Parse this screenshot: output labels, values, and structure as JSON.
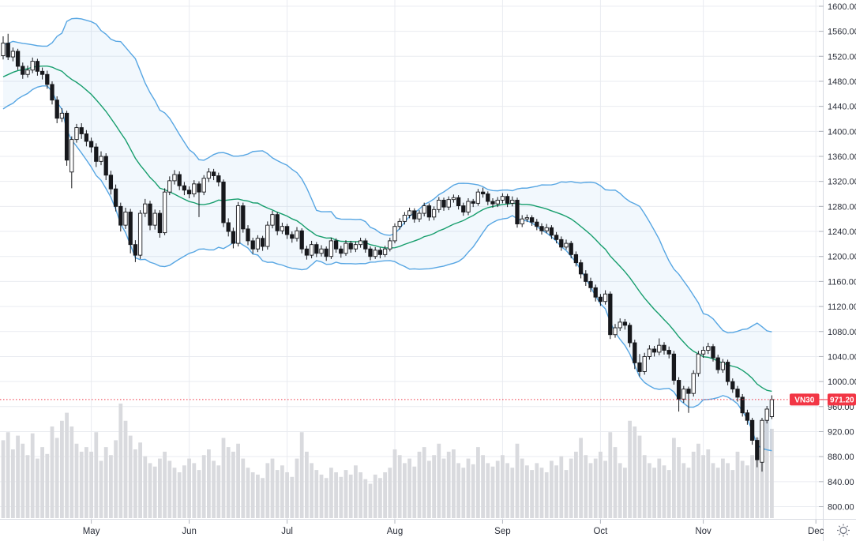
{
  "symbol_flag": {
    "symbol": "VN30",
    "price_label": "971.20"
  },
  "colors": {
    "background": "#ffffff",
    "grid": "#e9ebf0",
    "candle_black": "#17181c",
    "candle_white": "#ffffff",
    "band_line": "#57a6e3",
    "band_fill": "rgba(87,166,227,0.08)",
    "basis_line": "#179e6d",
    "volume_bar": "#d9dade",
    "last_price_red": "#f23645",
    "axis_text": "#2a2e39",
    "axis_border": "#d8dbe2",
    "tick_mark": "#b0b4bd",
    "icon_gray": "#6f7380"
  },
  "chart_data": {
    "type": "candlestick",
    "symbol": "VN30",
    "last_price": 971.2,
    "ylim": [
      780,
      1610
    ],
    "grid": true,
    "y_ticks": [
      1600,
      1560,
      1520,
      1480,
      1440,
      1400,
      1360,
      1320,
      1280,
      1240,
      1200,
      1160,
      1120,
      1080,
      1040,
      1000,
      960,
      920,
      880,
      840,
      800
    ],
    "months": [
      {
        "label": "May",
        "i": 18
      },
      {
        "label": "Jun",
        "i": 38
      },
      {
        "label": "Jul",
        "i": 58
      },
      {
        "label": "Aug",
        "i": 80
      },
      {
        "label": "Sep",
        "i": 102
      },
      {
        "label": "Oct",
        "i": 122
      },
      {
        "label": "Nov",
        "i": 143
      },
      {
        "label": "Dec",
        "i": 166
      }
    ],
    "indicators": {
      "bollinger": {
        "window": 20,
        "mult": 2,
        "pre_closes": [
          1442,
          1448,
          1455,
          1450,
          1460,
          1468,
          1462,
          1472,
          1480,
          1475,
          1485,
          1492,
          1488,
          1498,
          1505,
          1500,
          1510,
          1518,
          1512,
          1525
        ]
      }
    },
    "ohlc": [
      [
        1521,
        1552,
        1515,
        1541
      ],
      [
        1541,
        1556,
        1514,
        1519
      ],
      [
        1519,
        1534,
        1512,
        1528
      ],
      [
        1528,
        1532,
        1498,
        1504
      ],
      [
        1504,
        1510,
        1484,
        1491
      ],
      [
        1491,
        1505,
        1486,
        1498
      ],
      [
        1498,
        1518,
        1493,
        1512
      ],
      [
        1512,
        1516,
        1489,
        1496
      ],
      [
        1496,
        1502,
        1483,
        1491
      ],
      [
        1491,
        1497,
        1468,
        1475
      ],
      [
        1475,
        1480,
        1443,
        1450
      ],
      [
        1450,
        1456,
        1413,
        1421
      ],
      [
        1421,
        1437,
        1415,
        1429
      ],
      [
        1429,
        1433,
        1345,
        1354
      ],
      [
        1335,
        1392,
        1309,
        1387
      ],
      [
        1387,
        1412,
        1382,
        1406
      ],
      [
        1406,
        1413,
        1388,
        1396
      ],
      [
        1396,
        1402,
        1376,
        1384
      ],
      [
        1384,
        1390,
        1366,
        1375
      ],
      [
        1375,
        1381,
        1343,
        1352
      ],
      [
        1352,
        1368,
        1346,
        1360
      ],
      [
        1360,
        1365,
        1322,
        1330
      ],
      [
        1330,
        1337,
        1299,
        1308
      ],
      [
        1308,
        1315,
        1272,
        1280
      ],
      [
        1280,
        1286,
        1240,
        1250
      ],
      [
        1250,
        1278,
        1244,
        1271
      ],
      [
        1271,
        1276,
        1205,
        1219
      ],
      [
        1219,
        1226,
        1191,
        1202
      ],
      [
        1202,
        1274,
        1196,
        1269
      ],
      [
        1269,
        1292,
        1263,
        1284
      ],
      [
        1284,
        1289,
        1242,
        1250
      ],
      [
        1250,
        1275,
        1243,
        1269
      ],
      [
        1269,
        1274,
        1230,
        1238
      ],
      [
        1238,
        1309,
        1234,
        1303
      ],
      [
        1303,
        1328,
        1298,
        1321
      ],
      [
        1321,
        1338,
        1315,
        1331
      ],
      [
        1331,
        1336,
        1306,
        1313
      ],
      [
        1313,
        1319,
        1298,
        1306
      ],
      [
        1306,
        1312,
        1293,
        1300
      ],
      [
        1300,
        1322,
        1295,
        1316
      ],
      [
        1316,
        1320,
        1263,
        1303
      ],
      [
        1303,
        1330,
        1298,
        1325
      ],
      [
        1325,
        1341,
        1319,
        1335
      ],
      [
        1335,
        1340,
        1322,
        1329
      ],
      [
        1329,
        1334,
        1312,
        1319
      ],
      [
        1319,
        1323,
        1247,
        1254
      ],
      [
        1254,
        1261,
        1232,
        1240
      ],
      [
        1240,
        1246,
        1213,
        1221
      ],
      [
        1221,
        1287,
        1216,
        1281
      ],
      [
        1281,
        1286,
        1238,
        1244
      ],
      [
        1244,
        1250,
        1218,
        1225
      ],
      [
        1225,
        1230,
        1204,
        1212
      ],
      [
        1212,
        1234,
        1207,
        1229
      ],
      [
        1229,
        1233,
        1209,
        1216
      ],
      [
        1216,
        1256,
        1211,
        1250
      ],
      [
        1250,
        1273,
        1245,
        1267
      ],
      [
        1267,
        1271,
        1234,
        1241
      ],
      [
        1241,
        1254,
        1236,
        1248
      ],
      [
        1248,
        1252,
        1228,
        1235
      ],
      [
        1235,
        1240,
        1222,
        1229
      ],
      [
        1229,
        1247,
        1224,
        1241
      ],
      [
        1241,
        1245,
        1205,
        1212
      ],
      [
        1212,
        1217,
        1195,
        1202
      ],
      [
        1202,
        1225,
        1197,
        1219
      ],
      [
        1219,
        1223,
        1199,
        1205
      ],
      [
        1205,
        1218,
        1200,
        1212
      ],
      [
        1212,
        1216,
        1193,
        1200
      ],
      [
        1200,
        1230,
        1196,
        1225
      ],
      [
        1225,
        1229,
        1206,
        1212
      ],
      [
        1212,
        1217,
        1198,
        1205
      ],
      [
        1205,
        1226,
        1201,
        1221
      ],
      [
        1221,
        1225,
        1206,
        1212
      ],
      [
        1212,
        1224,
        1207,
        1219
      ],
      [
        1219,
        1230,
        1214,
        1225
      ],
      [
        1225,
        1229,
        1206,
        1212
      ],
      [
        1212,
        1216,
        1194,
        1200
      ],
      [
        1200,
        1215,
        1196,
        1210
      ],
      [
        1210,
        1214,
        1197,
        1203
      ],
      [
        1203,
        1217,
        1199,
        1212
      ],
      [
        1212,
        1230,
        1208,
        1225
      ],
      [
        1225,
        1253,
        1221,
        1248
      ],
      [
        1248,
        1261,
        1243,
        1256
      ],
      [
        1256,
        1271,
        1251,
        1266
      ],
      [
        1266,
        1278,
        1261,
        1273
      ],
      [
        1273,
        1277,
        1254,
        1260
      ],
      [
        1260,
        1274,
        1255,
        1269
      ],
      [
        1269,
        1286,
        1264,
        1281
      ],
      [
        1281,
        1285,
        1257,
        1263
      ],
      [
        1263,
        1280,
        1258,
        1275
      ],
      [
        1275,
        1295,
        1270,
        1290
      ],
      [
        1290,
        1294,
        1273,
        1279
      ],
      [
        1279,
        1296,
        1274,
        1291
      ],
      [
        1291,
        1299,
        1286,
        1294
      ],
      [
        1294,
        1298,
        1275,
        1281
      ],
      [
        1281,
        1286,
        1265,
        1271
      ],
      [
        1271,
        1293,
        1266,
        1288
      ],
      [
        1288,
        1292,
        1279,
        1285
      ],
      [
        1285,
        1308,
        1281,
        1303
      ],
      [
        1303,
        1310,
        1294,
        1300
      ],
      [
        1300,
        1304,
        1282,
        1288
      ],
      [
        1288,
        1293,
        1278,
        1284
      ],
      [
        1284,
        1295,
        1279,
        1290
      ],
      [
        1290,
        1301,
        1285,
        1296
      ],
      [
        1296,
        1300,
        1279,
        1285
      ],
      [
        1285,
        1296,
        1280,
        1290
      ],
      [
        1290,
        1294,
        1246,
        1252
      ],
      [
        1252,
        1266,
        1247,
        1260
      ],
      [
        1260,
        1267,
        1255,
        1262
      ],
      [
        1262,
        1266,
        1249,
        1255
      ],
      [
        1255,
        1260,
        1242,
        1248
      ],
      [
        1248,
        1253,
        1235,
        1241
      ],
      [
        1241,
        1252,
        1237,
        1246
      ],
      [
        1246,
        1250,
        1228,
        1234
      ],
      [
        1234,
        1239,
        1221,
        1227
      ],
      [
        1227,
        1232,
        1209,
        1215
      ],
      [
        1215,
        1227,
        1211,
        1221
      ],
      [
        1221,
        1225,
        1197,
        1203
      ],
      [
        1203,
        1208,
        1184,
        1190
      ],
      [
        1190,
        1195,
        1165,
        1172
      ],
      [
        1172,
        1178,
        1153,
        1160
      ],
      [
        1160,
        1166,
        1143,
        1150
      ],
      [
        1150,
        1155,
        1128,
        1135
      ],
      [
        1135,
        1140,
        1121,
        1128
      ],
      [
        1128,
        1146,
        1123,
        1140
      ],
      [
        1140,
        1144,
        1068,
        1075
      ],
      [
        1075,
        1092,
        1070,
        1086
      ],
      [
        1086,
        1101,
        1081,
        1095
      ],
      [
        1095,
        1100,
        1083,
        1090
      ],
      [
        1090,
        1094,
        1055,
        1062
      ],
      [
        1062,
        1067,
        1020,
        1030
      ],
      [
        1030,
        1044,
        1008,
        1016
      ],
      [
        1016,
        1046,
        1011,
        1040
      ],
      [
        1040,
        1058,
        1035,
        1052
      ],
      [
        1052,
        1057,
        1040,
        1047
      ],
      [
        1047,
        1069,
        1042,
        1058
      ],
      [
        1058,
        1063,
        1043,
        1050
      ],
      [
        1050,
        1056,
        1037,
        1044
      ],
      [
        1044,
        1049,
        995,
        1002
      ],
      [
        1002,
        1007,
        952,
        972
      ],
      [
        972,
        993,
        966,
        988
      ],
      [
        988,
        992,
        950,
        981
      ],
      [
        981,
        1018,
        976,
        1013
      ],
      [
        1013,
        1049,
        1008,
        1044
      ],
      [
        1044,
        1056,
        1038,
        1050
      ],
      [
        1050,
        1062,
        1044,
        1056
      ],
      [
        1056,
        1060,
        1032,
        1038
      ],
      [
        1038,
        1043,
        1013,
        1019
      ],
      [
        1019,
        1036,
        1014,
        1031
      ],
      [
        1031,
        1035,
        994,
        1000
      ],
      [
        1000,
        1005,
        982,
        988
      ],
      [
        988,
        993,
        968,
        975
      ],
      [
        975,
        980,
        944,
        950
      ],
      [
        950,
        955,
        931,
        938
      ],
      [
        938,
        942,
        899,
        906
      ],
      [
        906,
        911,
        863,
        875
      ],
      [
        871,
        942,
        856,
        938
      ],
      [
        938,
        961,
        933,
        956
      ],
      [
        944,
        978,
        940,
        971.2
      ]
    ],
    "volume_rel": [
      0.68,
      0.75,
      0.6,
      0.72,
      0.65,
      0.55,
      0.74,
      0.52,
      0.62,
      0.56,
      0.8,
      0.7,
      0.85,
      0.92,
      0.8,
      0.65,
      0.58,
      0.62,
      0.58,
      0.75,
      0.5,
      0.62,
      0.55,
      0.68,
      1.0,
      0.85,
      0.72,
      0.6,
      0.66,
      0.54,
      0.48,
      0.45,
      0.52,
      0.58,
      0.5,
      0.44,
      0.4,
      0.46,
      0.52,
      0.48,
      0.42,
      0.55,
      0.6,
      0.5,
      0.46,
      0.7,
      0.62,
      0.58,
      0.65,
      0.52,
      0.44,
      0.4,
      0.38,
      0.35,
      0.48,
      0.52,
      0.42,
      0.46,
      0.4,
      0.36,
      0.52,
      0.75,
      0.58,
      0.48,
      0.42,
      0.38,
      0.35,
      0.44,
      0.4,
      0.36,
      0.42,
      0.38,
      0.46,
      0.4,
      0.34,
      0.3,
      0.38,
      0.35,
      0.4,
      0.44,
      0.6,
      0.55,
      0.48,
      0.52,
      0.45,
      0.58,
      0.62,
      0.5,
      0.55,
      0.65,
      0.52,
      0.58,
      0.6,
      0.48,
      0.44,
      0.52,
      0.47,
      0.62,
      0.55,
      0.48,
      0.45,
      0.5,
      0.55,
      0.48,
      0.44,
      0.65,
      0.52,
      0.46,
      0.42,
      0.48,
      0.44,
      0.4,
      0.5,
      0.46,
      0.54,
      0.42,
      0.52,
      0.58,
      0.7,
      0.55,
      0.48,
      0.52,
      0.58,
      0.5,
      0.75,
      0.62,
      0.48,
      0.44,
      0.85,
      0.8,
      0.72,
      0.55,
      0.48,
      0.44,
      0.52,
      0.46,
      0.42,
      0.7,
      0.62,
      0.48,
      0.44,
      0.58,
      0.65,
      0.55,
      0.6,
      0.48,
      0.44,
      0.52,
      0.48,
      0.42,
      0.58,
      0.5,
      0.46,
      0.55,
      0.7,
      0.8,
      0.88,
      0.78
    ]
  }
}
